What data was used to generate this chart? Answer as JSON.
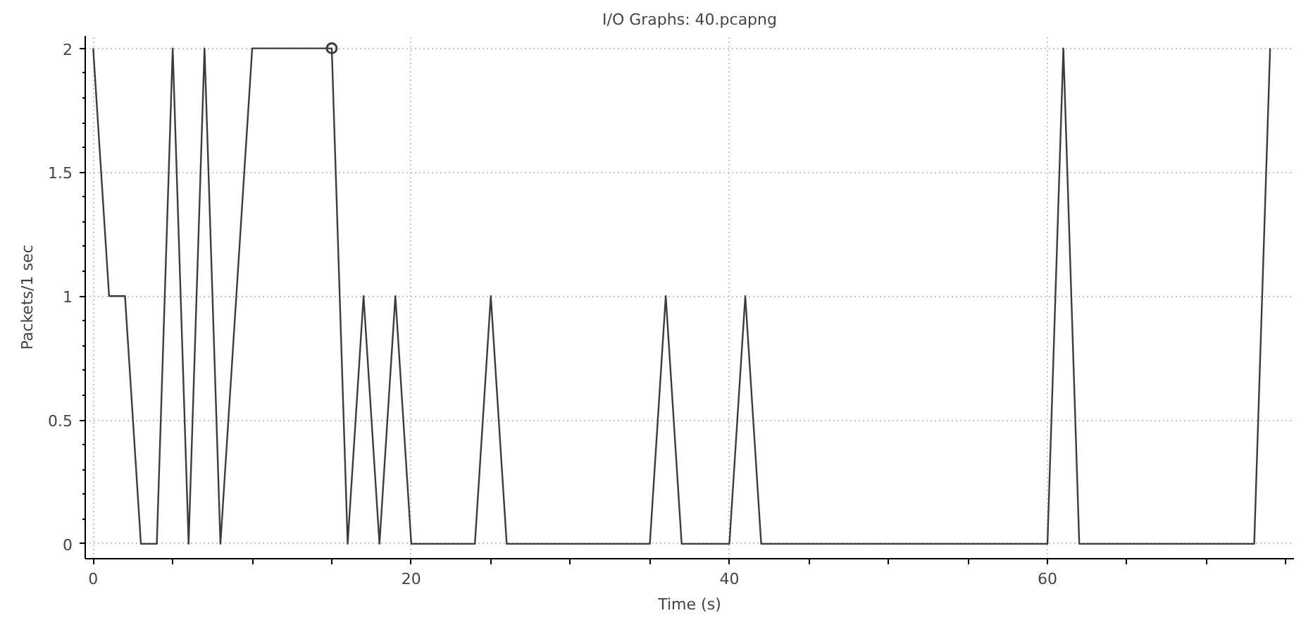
{
  "chart_data": {
    "type": "line",
    "title": "I/O Graphs: 40.pcapng",
    "xlabel": "Time (s)",
    "ylabel": "Packets/1 sec",
    "xlim": [
      -0.5,
      75.5
    ],
    "ylim": [
      -0.06,
      2.05
    ],
    "xticks": [
      0,
      {
        "value": 5,
        "label": null
      },
      {
        "value": 10,
        "label": null
      },
      {
        "value": 15,
        "label": null
      },
      20,
      {
        "value": 25,
        "label": null
      },
      {
        "value": 30,
        "label": null
      },
      {
        "value": 35,
        "label": null
      },
      40,
      {
        "value": 45,
        "label": null
      },
      {
        "value": 50,
        "label": null
      },
      {
        "value": 55,
        "label": null
      },
      60,
      {
        "value": 65,
        "label": null
      },
      {
        "value": 70,
        "label": null
      },
      {
        "value": 75,
        "label": null
      }
    ],
    "yticks": [
      0,
      0.5,
      1,
      1.5,
      2
    ],
    "grid": true,
    "line_style": "solid",
    "series": [
      {
        "color": "#3c3c3c",
        "marker": "none",
        "x": [
          0,
          1,
          2,
          3,
          4,
          5,
          6,
          7,
          8,
          9,
          10,
          11,
          12,
          13,
          14,
          15,
          16,
          17,
          18,
          19,
          20,
          21,
          22,
          23,
          24,
          25,
          26,
          27,
          28,
          29,
          30,
          31,
          32,
          33,
          34,
          35,
          36,
          37,
          38,
          39,
          40,
          41,
          42,
          43,
          44,
          45,
          46,
          47,
          48,
          49,
          50,
          51,
          52,
          53,
          54,
          55,
          56,
          57,
          58,
          59,
          60,
          61,
          62,
          63,
          64,
          65,
          66,
          67,
          68,
          69,
          70,
          71,
          72,
          73,
          74
        ],
        "values": [
          2,
          1,
          1,
          0,
          0,
          2,
          0,
          2,
          0,
          1,
          2,
          2,
          2,
          2,
          2,
          2,
          0,
          1,
          0,
          1,
          0,
          0,
          0,
          0,
          0,
          1,
          0,
          0,
          0,
          0,
          0,
          0,
          0,
          0,
          0,
          0,
          1,
          0,
          0,
          0,
          0,
          1,
          0,
          0,
          0,
          0,
          0,
          0,
          0,
          0,
          0,
          0,
          0,
          0,
          0,
          0,
          0,
          0,
          0,
          0,
          0,
          2,
          0,
          0,
          0,
          0,
          0,
          0,
          0,
          0,
          0,
          0,
          0,
          0,
          2
        ]
      },
      {
        "type": "scatter",
        "color": "#3c3c3c",
        "marker": "circle",
        "x": [
          15
        ],
        "values": [
          2
        ]
      }
    ]
  }
}
